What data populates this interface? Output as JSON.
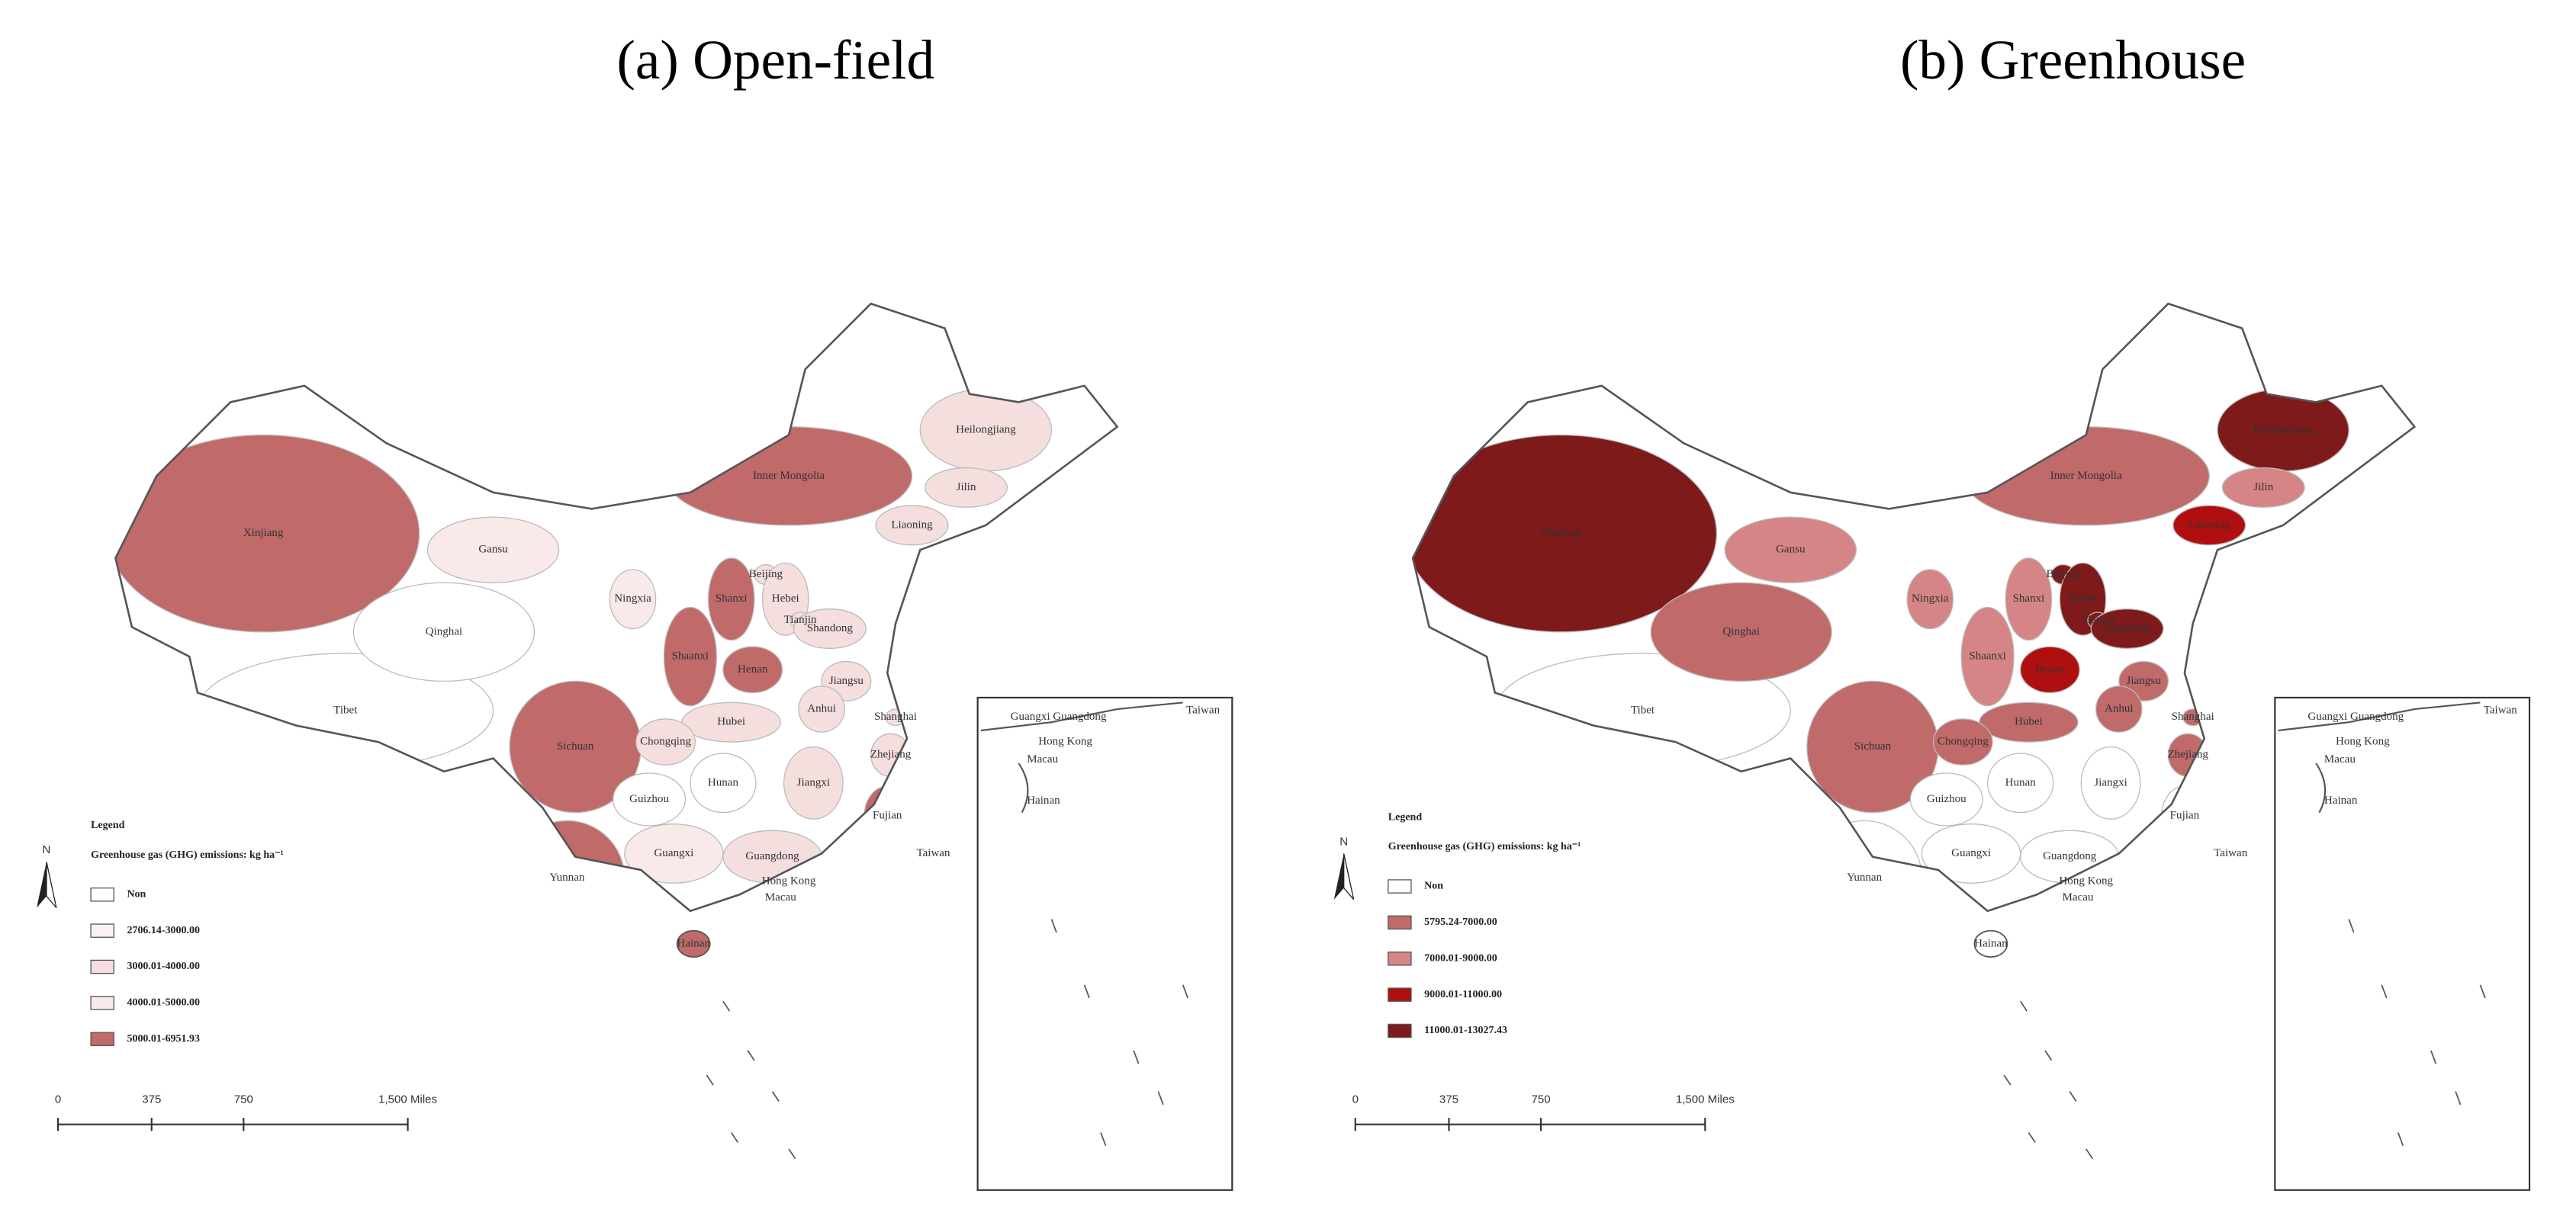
{
  "panels": [
    {
      "title": "(a) Open-field",
      "legend": {
        "title": "Legend",
        "subtitle": "Greenhouse gas (GHG) emissions: kg ha⁻¹",
        "items": [
          {
            "label": "Non",
            "color": "#ffffff"
          },
          {
            "label": "2706.14-3000.00",
            "color": "#fbf1f1"
          },
          {
            "label": "3000.01-4000.00",
            "color": "#f4dede"
          },
          {
            "label": "4000.01-5000.00",
            "color": "#f9e9e9"
          },
          {
            "label": "5000.01-6951.93",
            "color": "#c06a6a"
          }
        ]
      },
      "north": "N",
      "scale": [
        "0",
        "375",
        "750",
        "1,500 Miles"
      ],
      "regions": [
        {
          "name": "Xinjiang",
          "color": "#c06a6a"
        },
        {
          "name": "Tibet",
          "color": "#ffffff"
        },
        {
          "name": "Qinghai",
          "color": "#ffffff"
        },
        {
          "name": "Gansu",
          "color": "#f9e9e9"
        },
        {
          "name": "Inner Mongolia",
          "color": "#c06a6a"
        },
        {
          "name": "Heilongjiang",
          "color": "#f4dede"
        },
        {
          "name": "Jilin",
          "color": "#f4dede"
        },
        {
          "name": "Liaoning",
          "color": "#f4dede"
        },
        {
          "name": "Beijing",
          "color": "#f4dede"
        },
        {
          "name": "Hebei",
          "color": "#f4dede"
        },
        {
          "name": "Tianjin",
          "color": "#f4dede"
        },
        {
          "name": "Shanxi",
          "color": "#c06a6a"
        },
        {
          "name": "Ningxia",
          "color": "#f9e9e9"
        },
        {
          "name": "Shaanxi",
          "color": "#c06a6a"
        },
        {
          "name": "Henan",
          "color": "#c06a6a"
        },
        {
          "name": "Shandong",
          "color": "#f4dede"
        },
        {
          "name": "Jiangsu",
          "color": "#f4dede"
        },
        {
          "name": "Anhui",
          "color": "#f4dede"
        },
        {
          "name": "Shanghai",
          "color": "#f4dede"
        },
        {
          "name": "Hubei",
          "color": "#f4dede"
        },
        {
          "name": "Sichuan",
          "color": "#c06a6a"
        },
        {
          "name": "Chongqing",
          "color": "#f4dede"
        },
        {
          "name": "Zhejiang",
          "color": "#f4dede"
        },
        {
          "name": "Hunan",
          "color": "#ffffff"
        },
        {
          "name": "Jiangxi",
          "color": "#f4dede"
        },
        {
          "name": "Guizhou",
          "color": "#ffffff"
        },
        {
          "name": "Fujian",
          "color": "#c06a6a"
        },
        {
          "name": "Yunnan",
          "color": "#c06a6a"
        },
        {
          "name": "Guangxi",
          "color": "#f9e9e9"
        },
        {
          "name": "Guangdong",
          "color": "#f4dede"
        },
        {
          "name": "Taiwan",
          "color": "#ffffff"
        },
        {
          "name": "Hong Kong",
          "color": "#f4dede"
        },
        {
          "name": "Macau",
          "color": "#f4dede"
        },
        {
          "name": "Hainan",
          "color": "#c06a6a"
        }
      ],
      "inset_labels": [
        "Guangxi Guangdong",
        "Hong Kong",
        "Macau",
        "Taiwan",
        "Hainan"
      ]
    },
    {
      "title": "(b) Greenhouse",
      "legend": {
        "title": "Legend",
        "subtitle": "Greenhouse gas (GHG) emissions: kg ha⁻¹",
        "items": [
          {
            "label": "Non",
            "color": "#ffffff"
          },
          {
            "label": "5795.24-7000.00",
            "color": "#c06a6a"
          },
          {
            "label": "7000.01-9000.00",
            "color": "#d58585"
          },
          {
            "label": "9000.01-11000.00",
            "color": "#b00f0f"
          },
          {
            "label": "11000.01-13027.43",
            "color": "#7e1a1a"
          }
        ]
      },
      "north": "N",
      "scale": [
        "0",
        "375",
        "750",
        "1,500 Miles"
      ],
      "regions": [
        {
          "name": "Xinjiang",
          "color": "#7e1a1a"
        },
        {
          "name": "Tibet",
          "color": "#ffffff"
        },
        {
          "name": "Qinghai",
          "color": "#c06a6a"
        },
        {
          "name": "Gansu",
          "color": "#d58585"
        },
        {
          "name": "Inner Mongolia",
          "color": "#c06a6a"
        },
        {
          "name": "Heilongjiang",
          "color": "#7e1a1a"
        },
        {
          "name": "Jilin",
          "color": "#d58585"
        },
        {
          "name": "Liaoning",
          "color": "#b00f0f"
        },
        {
          "name": "Beijing",
          "color": "#7e1a1a"
        },
        {
          "name": "Hebei",
          "color": "#7e1a1a"
        },
        {
          "name": "Tianjin",
          "color": "#7e1a1a"
        },
        {
          "name": "Shanxi",
          "color": "#d58585"
        },
        {
          "name": "Ningxia",
          "color": "#d58585"
        },
        {
          "name": "Shaanxi",
          "color": "#d58585"
        },
        {
          "name": "Henan",
          "color": "#b00f0f"
        },
        {
          "name": "Shandong",
          "color": "#7e1a1a"
        },
        {
          "name": "Jiangsu",
          "color": "#c06a6a"
        },
        {
          "name": "Anhui",
          "color": "#c06a6a"
        },
        {
          "name": "Shanghai",
          "color": "#c06a6a"
        },
        {
          "name": "Hubei",
          "color": "#c06a6a"
        },
        {
          "name": "Sichuan",
          "color": "#c06a6a"
        },
        {
          "name": "Chongqing",
          "color": "#c06a6a"
        },
        {
          "name": "Zhejiang",
          "color": "#c06a6a"
        },
        {
          "name": "Hunan",
          "color": "#ffffff"
        },
        {
          "name": "Jiangxi",
          "color": "#ffffff"
        },
        {
          "name": "Guizhou",
          "color": "#ffffff"
        },
        {
          "name": "Fujian",
          "color": "#ffffff"
        },
        {
          "name": "Yunnan",
          "color": "#ffffff"
        },
        {
          "name": "Guangxi",
          "color": "#ffffff"
        },
        {
          "name": "Guangdong",
          "color": "#ffffff"
        },
        {
          "name": "Taiwan",
          "color": "#ffffff"
        },
        {
          "name": "Hong Kong",
          "color": "#ffffff"
        },
        {
          "name": "Macau",
          "color": "#ffffff"
        },
        {
          "name": "Hainan",
          "color": "#ffffff"
        }
      ],
      "inset_labels": [
        "Guangxi Guangdong",
        "Hong Kong",
        "Macau",
        "Taiwan",
        "Hainan"
      ]
    }
  ]
}
